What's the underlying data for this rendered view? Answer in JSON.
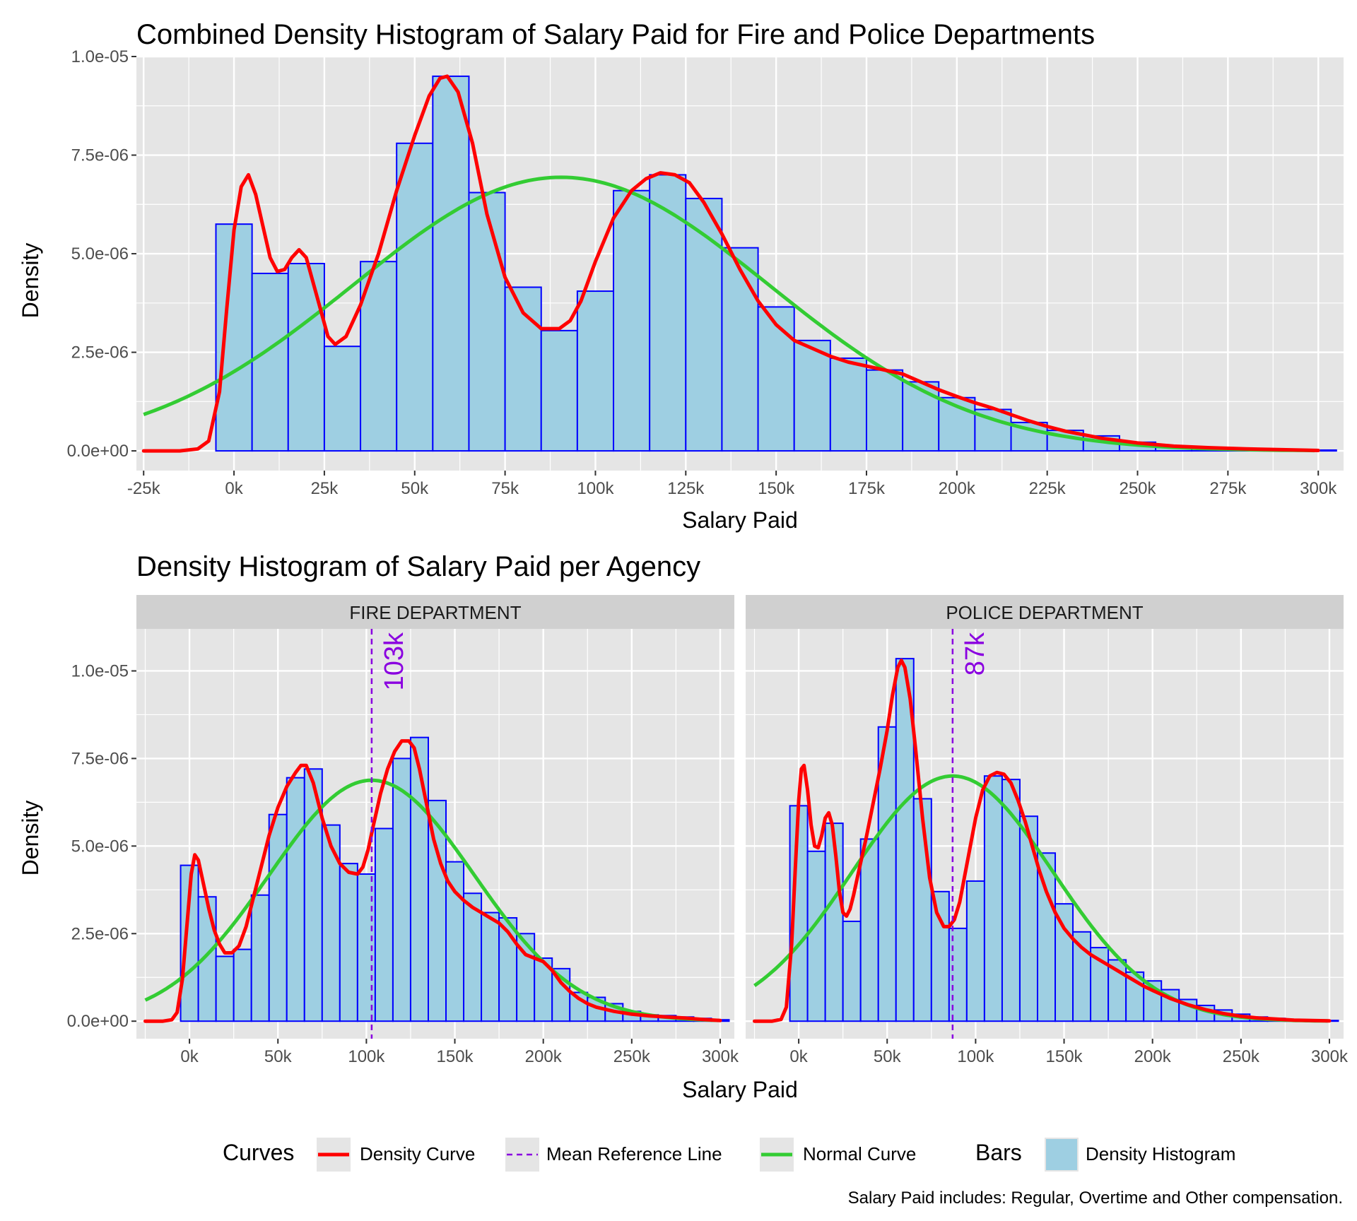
{
  "colors": {
    "panel_bg": "#E5E5E5",
    "grid": "#FFFFFF",
    "strip_bg": "#D0D0D0",
    "bar_fill": "#9ECFE2",
    "bar_border": "#0000FF",
    "density_curve": "#FF0000",
    "normal_curve": "#33CC33",
    "mean_line": "#8A00E0"
  },
  "chart_data": [
    {
      "type": "bar",
      "title": "Combined Density Histogram of Salary Paid for Fire and Police Departments",
      "xlabel": "Salary Paid",
      "ylabel": "Density",
      "xlim": [
        -27000,
        307000
      ],
      "ylim": [
        -5e-07,
        1e-05
      ],
      "x_ticks": [
        -25000,
        0,
        25000,
        50000,
        75000,
        100000,
        125000,
        150000,
        175000,
        200000,
        225000,
        250000,
        275000,
        300000
      ],
      "x_tick_labels": [
        "-25k",
        "0k",
        "25k",
        "50k",
        "75k",
        "100k",
        "125k",
        "150k",
        "175k",
        "200k",
        "225k",
        "250k",
        "275k",
        "300k"
      ],
      "y_ticks": [
        0,
        2.5e-06,
        5e-06,
        7.5e-06,
        1e-05
      ],
      "y_tick_labels": [
        "0.0e+00",
        "2.5e-06",
        "5.0e-06",
        "7.5e-06",
        "1.0e-05"
      ],
      "grid": true,
      "bin_width": 10000,
      "bin_starts": [
        -5000,
        5000,
        15000,
        25000,
        35000,
        45000,
        55000,
        65000,
        75000,
        85000,
        95000,
        105000,
        115000,
        125000,
        135000,
        145000,
        155000,
        165000,
        175000,
        185000,
        195000,
        205000,
        215000,
        225000,
        235000,
        245000,
        255000,
        265000,
        275000,
        285000,
        295000
      ],
      "histogram": [
        5.75e-06,
        4.5e-06,
        4.75e-06,
        2.65e-06,
        4.8e-06,
        7.8e-06,
        9.5e-06,
        6.55e-06,
        4.15e-06,
        3.05e-06,
        4.05e-06,
        6.6e-06,
        7e-06,
        6.4e-06,
        5.15e-06,
        3.65e-06,
        2.8e-06,
        2.35e-06,
        2.05e-06,
        1.75e-06,
        1.35e-06,
        1.05e-06,
        7.2e-07,
        5.2e-07,
        3.8e-07,
        2.2e-07,
        1.2e-07,
        7e-08,
        5e-08,
        3e-08,
        2e-08
      ],
      "density_curve": {
        "x": [
          -25000,
          -15000,
          -10000,
          -7000,
          -4000,
          -2000,
          0,
          2000,
          4000,
          6000,
          8000,
          10000,
          12000,
          14000,
          16000,
          18000,
          20000,
          23000,
          26000,
          28000,
          31000,
          35000,
          40000,
          45000,
          50000,
          54000,
          57000,
          59000,
          62000,
          66000,
          70000,
          75000,
          80000,
          85000,
          90000,
          93000,
          96000,
          100000,
          105000,
          110000,
          114000,
          118000,
          122000,
          126000,
          130000,
          135000,
          140000,
          145000,
          150000,
          155000,
          160000,
          165000,
          170000,
          175000,
          180000,
          185000,
          190000,
          195000,
          200000,
          205000,
          210000,
          215000,
          220000,
          225000,
          230000,
          240000,
          250000,
          260000,
          270000,
          280000,
          290000,
          300000
        ],
        "y": [
          0,
          0,
          5e-08,
          2.5e-07,
          1.5e-06,
          3.6e-06,
          5.6e-06,
          6.7e-06,
          7e-06,
          6.5e-06,
          5.7e-06,
          4.9e-06,
          4.55e-06,
          4.6e-06,
          4.9e-06,
          5.1e-06,
          4.9e-06,
          3.9e-06,
          2.9e-06,
          2.7e-06,
          2.9e-06,
          3.7e-06,
          5e-06,
          6.6e-06,
          8e-06,
          9e-06,
          9.45e-06,
          9.5e-06,
          9.1e-06,
          7.8e-06,
          6e-06,
          4.4e-06,
          3.5e-06,
          3.1e-06,
          3.1e-06,
          3.3e-06,
          3.8e-06,
          4.8e-06,
          5.9e-06,
          6.6e-06,
          6.9e-06,
          7.05e-06,
          7e-06,
          6.8e-06,
          6.3e-06,
          5.5e-06,
          4.6e-06,
          3.8e-06,
          3.2e-06,
          2.8e-06,
          2.6e-06,
          2.4e-06,
          2.25e-06,
          2.15e-06,
          2.05e-06,
          1.95e-06,
          1.75e-06,
          1.55e-06,
          1.38e-06,
          1.22e-06,
          1.08e-06,
          9.2e-07,
          7.6e-07,
          6.2e-07,
          5e-07,
          3.2e-07,
          2e-07,
          1.2e-07,
          8e-08,
          5e-08,
          3e-08,
          1e-08
        ]
      },
      "normal_curve": {
        "mean": 90500,
        "sd": 57500
      },
      "legend": "bottom"
    },
    {
      "type": "bar",
      "title": "Density Histogram of Salary Paid per Agency",
      "xlabel": "Salary Paid",
      "ylabel": "Density",
      "xlim": [
        -30000,
        308000
      ],
      "ylim": [
        -5e-07,
        1.12e-05
      ],
      "x_ticks": [
        0,
        50000,
        100000,
        150000,
        200000,
        250000,
        300000
      ],
      "x_tick_labels": [
        "0k",
        "50k",
        "100k",
        "150k",
        "200k",
        "250k",
        "300k"
      ],
      "y_ticks": [
        0,
        2.5e-06,
        5e-06,
        7.5e-06,
        1e-05
      ],
      "y_tick_labels": [
        "0.0e+00",
        "2.5e-06",
        "5.0e-06",
        "7.5e-06",
        "1.0e-05"
      ],
      "grid": true,
      "bin_width": 10000,
      "bin_starts": [
        -5000,
        5000,
        15000,
        25000,
        35000,
        45000,
        55000,
        65000,
        75000,
        85000,
        95000,
        105000,
        115000,
        125000,
        135000,
        145000,
        155000,
        165000,
        175000,
        185000,
        195000,
        205000,
        215000,
        225000,
        235000,
        245000,
        255000,
        265000,
        275000,
        285000,
        295000
      ],
      "panels": [
        {
          "strip": "FIRE DEPARTMENT",
          "mean": 103000,
          "mean_label": "103k",
          "histogram": [
            4.45e-06,
            3.55e-06,
            1.85e-06,
            2.05e-06,
            3.6e-06,
            5.9e-06,
            6.95e-06,
            7.2e-06,
            5.6e-06,
            4.5e-06,
            4.2e-06,
            5.5e-06,
            7.5e-06,
            8.1e-06,
            6.3e-06,
            4.55e-06,
            3.65e-06,
            3.1e-06,
            2.95e-06,
            2.5e-06,
            1.8e-06,
            1.5e-06,
            8.2e-07,
            6.8e-07,
            5e-07,
            2.8e-07,
            1.8e-07,
            1.6e-07,
            1.2e-07,
            8e-08,
            4e-08
          ],
          "density_curve": {
            "x": [
              -25000,
              -15000,
              -10000,
              -7000,
              -4000,
              -1000,
              1000,
              3000,
              5000,
              8000,
              11000,
              14000,
              17000,
              20000,
              24000,
              28000,
              32000,
              36000,
              40000,
              45000,
              50000,
              55000,
              60000,
              63000,
              66000,
              70000,
              75000,
              80000,
              85000,
              90000,
              95000,
              98000,
              101000,
              104000,
              108000,
              112000,
              116000,
              120000,
              124000,
              127000,
              130000,
              134000,
              138000,
              142000,
              146000,
              150000,
              155000,
              160000,
              165000,
              170000,
              175000,
              180000,
              185000,
              190000,
              195000,
              200000,
              205000,
              210000,
              215000,
              220000,
              225000,
              230000,
              240000,
              250000,
              260000,
              270000,
              280000,
              290000,
              300000
            ],
            "y": [
              0,
              0,
              4e-08,
              2.5e-07,
              1.2e-06,
              3e-06,
              4.2e-06,
              4.75e-06,
              4.6e-06,
              3.9e-06,
              3.2e-06,
              2.6e-06,
              2.2e-06,
              1.95e-06,
              1.95e-06,
              2.15e-06,
              2.7e-06,
              3.5e-06,
              4.3e-06,
              5.3e-06,
              6.1e-06,
              6.7e-06,
              7.1e-06,
              7.3e-06,
              7.3e-06,
              6.8e-06,
              5.8e-06,
              5e-06,
              4.5e-06,
              4.25e-06,
              4.2e-06,
              4.4e-06,
              4.9e-06,
              5.6e-06,
              6.5e-06,
              7.2e-06,
              7.7e-06,
              8e-06,
              8e-06,
              7.8e-06,
              7.2e-06,
              6.2e-06,
              5.2e-06,
              4.5e-06,
              4e-06,
              3.7e-06,
              3.45e-06,
              3.25e-06,
              3.1e-06,
              2.95e-06,
              2.8e-06,
              2.55e-06,
              2.2e-06,
              1.9e-06,
              1.8e-06,
              1.7e-06,
              1.45e-06,
              1.1e-06,
              8.5e-07,
              6.5e-07,
              5e-07,
              4e-07,
              2.8e-07,
              2e-07,
              1.5e-07,
              1.2e-07,
              9e-08,
              5e-08,
              2e-08
            ]
          },
          "normal_curve": {
            "mean": 103000,
            "sd": 58000
          }
        },
        {
          "strip": "POLICE DEPARTMENT",
          "mean": 87000,
          "mean_label": "87k",
          "histogram": [
            6.15e-06,
            4.85e-06,
            5.65e-06,
            2.85e-06,
            5.2e-06,
            8.4e-06,
            1.035e-05,
            6.35e-06,
            3.7e-06,
            2.65e-06,
            4e-06,
            7e-06,
            6.9e-06,
            5.85e-06,
            4.8e-06,
            3.35e-06,
            2.55e-06,
            2.1e-06,
            1.75e-06,
            1.4e-06,
            1.15e-06,
            9e-07,
            6.2e-07,
            4.5e-07,
            3.2e-07,
            2e-07,
            1.2e-07,
            8e-08,
            5e-08,
            3e-08,
            2e-08
          ],
          "density_curve": {
            "x": [
              -25000,
              -15000,
              -10000,
              -7000,
              -4000,
              -2000,
              0,
              1500,
              3000,
              5000,
              7000,
              9000,
              11000,
              13000,
              15000,
              17000,
              19000,
              21000,
              23000,
              25000,
              27000,
              29000,
              31000,
              34000,
              38000,
              42000,
              46000,
              50000,
              53000,
              56000,
              58000,
              60000,
              63000,
              66000,
              70000,
              74000,
              78000,
              82000,
              85000,
              88000,
              91000,
              94000,
              97000,
              100000,
              104000,
              108000,
              112000,
              116000,
              120000,
              124000,
              128000,
              132000,
              136000,
              140000,
              145000,
              150000,
              155000,
              160000,
              165000,
              170000,
              175000,
              180000,
              185000,
              190000,
              195000,
              200000,
              210000,
              220000,
              230000,
              240000,
              250000,
              260000,
              270000,
              280000,
              290000,
              300000
            ],
            "y": [
              0,
              0,
              5e-08,
              4e-07,
              2.2e-06,
              4.3e-06,
              6.3e-06,
              7.2e-06,
              7.3e-06,
              6.6e-06,
              5.6e-06,
              5e-06,
              4.95e-06,
              5.3e-06,
              5.8e-06,
              5.95e-06,
              5.6e-06,
              4.7e-06,
              3.7e-06,
              3.1e-06,
              3e-06,
              3.2e-06,
              3.6e-06,
              4.3e-06,
              5.2e-06,
              6.2e-06,
              7.2e-06,
              8.3e-06,
              9.3e-06,
              1.01e-05,
              1.03e-05,
              1.01e-05,
              9.2e-06,
              7.8e-06,
              5.8e-06,
              4.1e-06,
              3.1e-06,
              2.7e-06,
              2.7e-06,
              2.9e-06,
              3.4e-06,
              4.2e-06,
              5e-06,
              5.8e-06,
              6.6e-06,
              7e-06,
              7.1e-06,
              7.05e-06,
              6.8e-06,
              6.3e-06,
              5.7e-06,
              5e-06,
              4.3e-06,
              3.7e-06,
              3.1e-06,
              2.65e-06,
              2.35e-06,
              2.1e-06,
              1.9e-06,
              1.75e-06,
              1.6e-06,
              1.45e-06,
              1.3e-06,
              1.15e-06,
              1e-06,
              8.8e-07,
              6.5e-07,
              4.7e-07,
              3.3e-07,
              2.2e-07,
              1.4e-07,
              9e-08,
              6e-08,
              3e-08,
              2e-08,
              1e-08
            ]
          },
          "normal_curve": {
            "mean": 87000,
            "sd": 57000
          }
        }
      ]
    }
  ],
  "legend": {
    "curves_title": "Curves",
    "curves": [
      {
        "label": "Density Curve",
        "style": "solid",
        "color": "#FF0000"
      },
      {
        "label": "Mean Reference Line",
        "style": "dashed",
        "color": "#8A00E0"
      },
      {
        "label": "Normal Curve",
        "style": "solid",
        "color": "#33CC33"
      }
    ],
    "bars_title": "Bars",
    "bars": [
      {
        "label": "Density Histogram",
        "fill": "#9ECFE2"
      }
    ]
  },
  "caption": "Salary Paid includes: Regular, Overtime and Other compensation."
}
